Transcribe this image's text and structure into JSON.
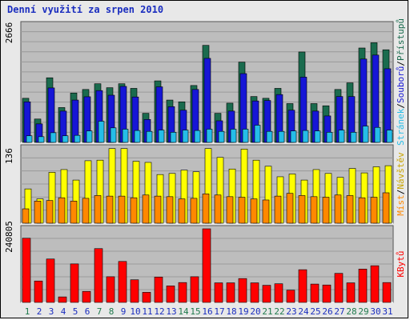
{
  "title": "Denní využití za srpen 2010",
  "colors": {
    "panel_bg": "#bdbdbd",
    "hits": "#1a6b4e",
    "files": "#1616d6",
    "pages": "#25bde8",
    "visits": "#ffff00",
    "sites": "#ff8800",
    "kbytes": "#ff0000",
    "weekend_day": "#1f7a4d",
    "weekday": "#1a2dbf"
  },
  "chart_data": [
    {
      "type": "bar",
      "panel": "traffic",
      "ytick": "2666",
      "ymax": 2666,
      "right_label": {
        "hits": "Přístupů",
        "files": "Souborů",
        "pages": "Stránek",
        "separator": "/"
      },
      "categories": [
        "1",
        "2",
        "3",
        "4",
        "5",
        "6",
        "7",
        "8",
        "9",
        "10",
        "11",
        "12",
        "13",
        "14",
        "15",
        "16",
        "17",
        "18",
        "19",
        "20",
        "21",
        "22",
        "23",
        "24",
        "25",
        "26",
        "27",
        "28",
        "29",
        "30",
        "31"
      ],
      "series": [
        {
          "name": "Přístupů",
          "values": [
            1000,
            530,
            1465,
            790,
            1120,
            1200,
            1330,
            1240,
            1330,
            1225,
            660,
            1395,
            960,
            920,
            1290,
            2200,
            660,
            890,
            1820,
            1040,
            1000,
            1225,
            880,
            2050,
            880,
            830,
            1200,
            1350,
            2140,
            2260,
            2100
          ]
        },
        {
          "name": "Souborů",
          "values": [
            920,
            420,
            1235,
            710,
            960,
            1035,
            1175,
            1070,
            1270,
            1030,
            520,
            1260,
            810,
            730,
            1200,
            1905,
            490,
            710,
            1560,
            940,
            950,
            1085,
            730,
            1480,
            710,
            600,
            1040,
            1040,
            1890,
            1980,
            1670
          ]
        },
        {
          "name": "Stránek",
          "values": [
            150,
            130,
            220,
            150,
            160,
            260,
            480,
            330,
            300,
            270,
            250,
            280,
            230,
            280,
            270,
            300,
            250,
            300,
            300,
            390,
            250,
            250,
            260,
            270,
            260,
            230,
            280,
            230,
            370,
            340,
            280
          ]
        }
      ]
    },
    {
      "type": "bar",
      "panel": "visitors",
      "ytick": "136",
      "ymax": 136,
      "right_label": {
        "visits": "Návštěv",
        "sites": "Míst",
        "separator": "/"
      },
      "categories": [
        "1",
        "2",
        "3",
        "4",
        "5",
        "6",
        "7",
        "8",
        "9",
        "10",
        "11",
        "12",
        "13",
        "14",
        "15",
        "16",
        "17",
        "18",
        "19",
        "20",
        "21",
        "22",
        "23",
        "24",
        "25",
        "26",
        "27",
        "28",
        "29",
        "30",
        "31"
      ],
      "series": [
        {
          "name": "Návštěv",
          "values": [
            62,
            44,
            92,
            97,
            78,
            113,
            114,
            135,
            135,
            112,
            110,
            88,
            90,
            96,
            93,
            135,
            119,
            98,
            134,
            114,
            103,
            84,
            89,
            78,
            97,
            90,
            83,
            99,
            91,
            102,
            104
          ]
        },
        {
          "name": "Míst",
          "values": [
            26,
            40,
            41,
            46,
            40,
            45,
            50,
            49,
            49,
            46,
            51,
            49,
            48,
            44,
            45,
            53,
            51,
            48,
            47,
            44,
            42,
            49,
            54,
            50,
            48,
            47,
            51,
            50,
            46,
            47,
            55
          ]
        }
      ]
    },
    {
      "type": "bar",
      "panel": "kbytes",
      "ytick": "240805",
      "ymax": 240805,
      "right_label": {
        "kbytes": "KBytů"
      },
      "categories": [
        "1",
        "2",
        "3",
        "4",
        "5",
        "6",
        "7",
        "8",
        "9",
        "10",
        "11",
        "12",
        "13",
        "14",
        "15",
        "16",
        "17",
        "18",
        "19",
        "20",
        "21",
        "22",
        "23",
        "24",
        "25",
        "26",
        "27",
        "28",
        "29",
        "30",
        "31"
      ],
      "series": [
        {
          "name": "KBytů",
          "values": [
            210000,
            70000,
            142000,
            18000,
            126000,
            36000,
            176000,
            84000,
            134000,
            74000,
            33000,
            83000,
            54000,
            65000,
            84000,
            240805,
            64000,
            64000,
            78000,
            64000,
            56000,
            61000,
            40000,
            107000,
            60000,
            57000,
            95000,
            64000,
            109000,
            120000,
            65000
          ]
        }
      ],
      "weekend_days": [
        1,
        7,
        8,
        14,
        15,
        21,
        22,
        28,
        29
      ]
    }
  ]
}
